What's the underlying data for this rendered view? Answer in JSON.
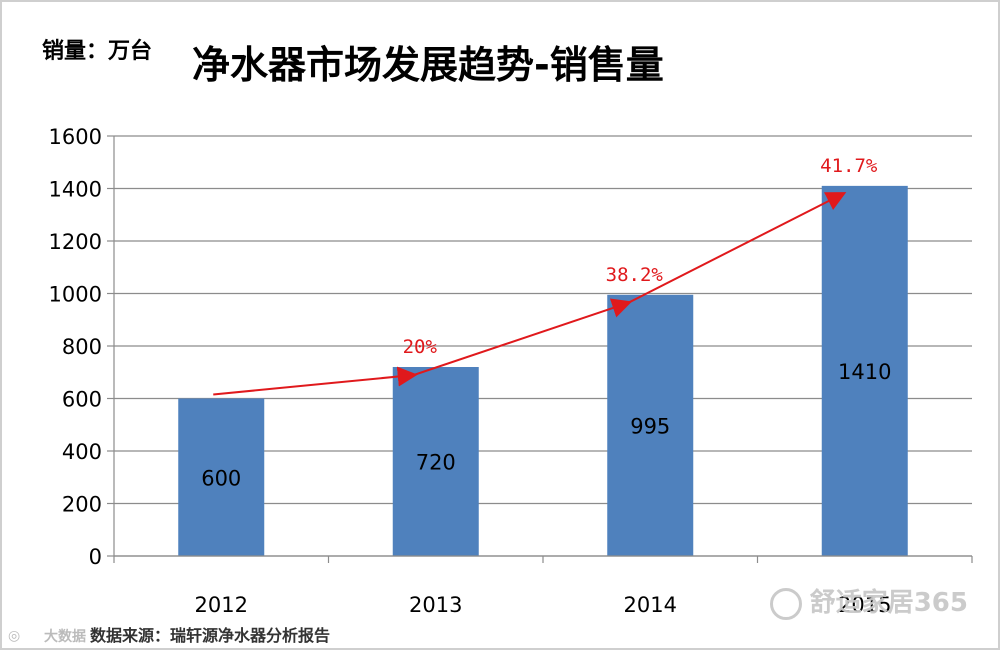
{
  "chart_data": {
    "type": "bar",
    "title": "净水器市场发展趋势-销售量",
    "unit_label": "销量：万台",
    "categories": [
      "2012",
      "2013",
      "2014",
      "2015"
    ],
    "values": [
      600,
      720,
      995,
      1410
    ],
    "data_labels": [
      "600",
      "720",
      "995",
      "1410"
    ],
    "growth_labels": [
      "",
      "20%",
      "38.2%",
      "41.7%"
    ],
    "yticks": [
      "0",
      "200",
      "400",
      "600",
      "800",
      "1000",
      "1200",
      "1400",
      "1600"
    ],
    "ylim": [
      0,
      1600
    ],
    "grid": true,
    "bar_color": "#4f81bd",
    "trend_color": "#e0191c"
  },
  "source_text": "数据来源：瑞轩源净水器分析报告",
  "source_logo": "大数据",
  "watermark": "舒适家居365"
}
